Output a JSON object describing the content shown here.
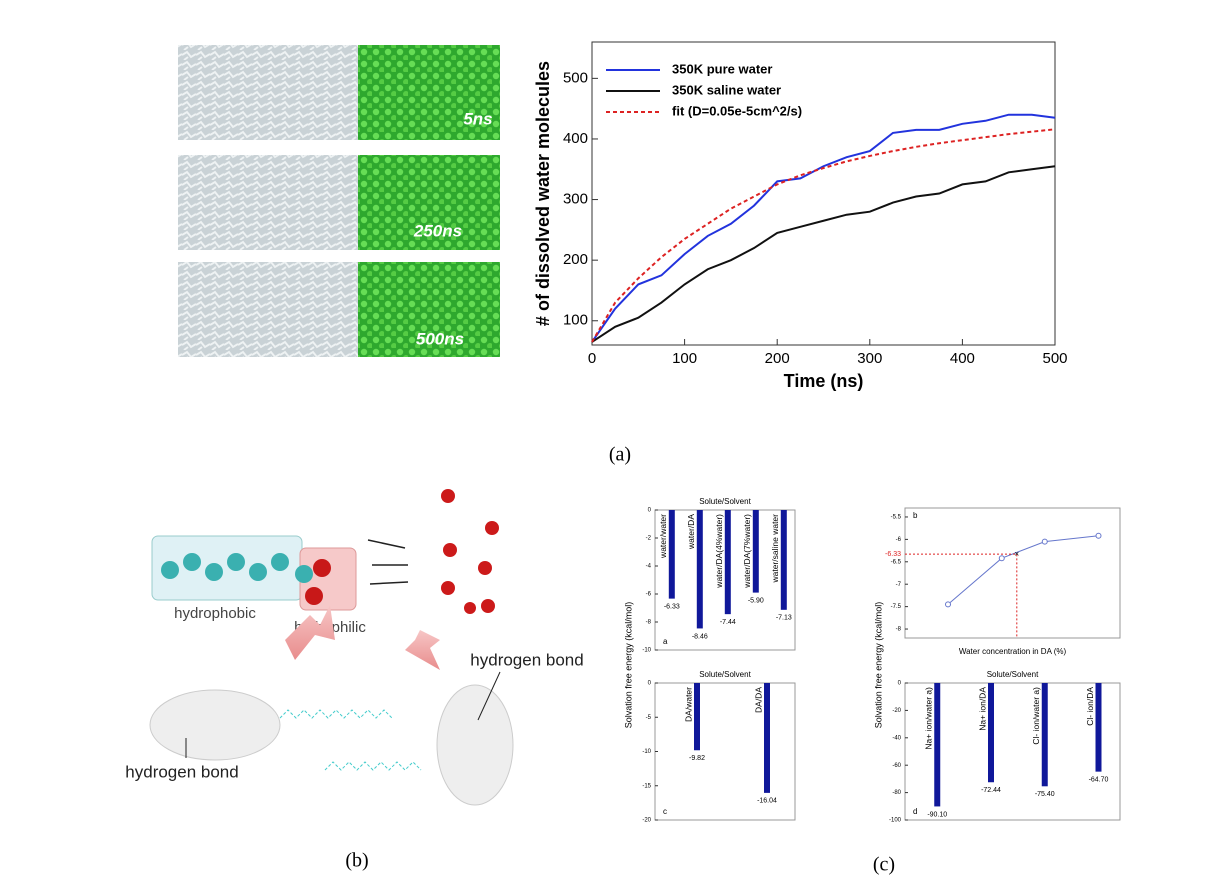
{
  "chart_data": [
    {
      "type": "line",
      "x_label": "Time (ns)",
      "y_label": "# of dissolved water molecules",
      "x": [
        0,
        25,
        50,
        75,
        100,
        125,
        150,
        175,
        200,
        225,
        250,
        275,
        300,
        325,
        350,
        375,
        400,
        425,
        450,
        475,
        500
      ],
      "series": [
        {
          "name": "350K pure water",
          "color": "#2233dd",
          "style": "solid",
          "values": [
            65,
            120,
            160,
            175,
            210,
            240,
            260,
            290,
            330,
            335,
            355,
            370,
            380,
            410,
            415,
            415,
            425,
            430,
            440,
            440,
            435
          ]
        },
        {
          "name": "350K saline water",
          "color": "#111111",
          "style": "solid",
          "values": [
            65,
            90,
            105,
            130,
            160,
            185,
            200,
            220,
            245,
            255,
            265,
            275,
            280,
            295,
            305,
            310,
            325,
            330,
            345,
            350,
            355
          ]
        },
        {
          "name": "fit (D=0.05e-5cm^2/s)",
          "color": "#dd2222",
          "style": "dashed",
          "values": [
            65,
            130,
            170,
            205,
            235,
            260,
            285,
            305,
            325,
            340,
            352,
            363,
            372,
            380,
            387,
            393,
            398,
            403,
            408,
            412,
            416
          ]
        }
      ],
      "xlim": [
        0,
        500
      ],
      "xticks": [
        0,
        100,
        200,
        300,
        400,
        500
      ],
      "ylim": [
        60,
        560
      ],
      "yticks": [
        100,
        200,
        300,
        400,
        500
      ],
      "legend": "top-left"
    },
    {
      "type": "bar",
      "title": "Solute/Solvent",
      "panel_label": "a",
      "y_label": "Solvation free energy (kcal/mol)",
      "color": "#10189a",
      "categories": [
        "water/water",
        "water/DA",
        "water/DA(4%water)",
        "water/DA(7%water)",
        "water/saline water"
      ],
      "values": [
        -6.33,
        -8.46,
        -7.44,
        -5.9,
        -7.13
      ],
      "value_labels": [
        "-6.33",
        "-8.46",
        "-7.44",
        "-5.90",
        "-7.13"
      ],
      "ylim": [
        -10,
        0
      ],
      "yticks": [
        0,
        -2,
        -4,
        -6,
        -8,
        -10
      ]
    },
    {
      "type": "line",
      "panel_label": "b",
      "x_label": "Water concentration in DA (%)",
      "color": "#666688",
      "x": [
        2,
        4.5,
        6.5,
        9
      ],
      "series": [
        {
          "color": "#6677cc",
          "values": [
            -7.45,
            -6.42,
            -6.05,
            -5.92
          ]
        }
      ],
      "highlight": {
        "x": 5.2,
        "y": -6.33,
        "color": "#dd2222"
      },
      "xlim": [
        0,
        10
      ],
      "ylim": [
        -8.2,
        -5.3
      ],
      "yticks": [
        -5.5,
        -6,
        -6.5,
        -7,
        -7.5,
        -8
      ]
    },
    {
      "type": "bar",
      "title": "Solute/Solvent",
      "panel_label": "c",
      "color": "#10189a",
      "categories": [
        "DA/water",
        "DA/DA"
      ],
      "values": [
        -9.82,
        -16.04
      ],
      "value_labels": [
        "-9.82",
        "-16.04"
      ],
      "ylim": [
        -20,
        0
      ],
      "yticks": [
        0,
        -5,
        -10,
        -15,
        -20
      ]
    },
    {
      "type": "bar",
      "title": "Solute/Solvent",
      "panel_label": "d",
      "y_label": "Solvation free energy (kcal/mol)",
      "color": "#10189a",
      "categories": [
        "Na+ ion/water a)",
        "Na+ ion/DA",
        "Cl- ion/water a)",
        "Cl- ion/DA"
      ],
      "values": [
        -90.1,
        -72.44,
        -75.4,
        -64.7
      ],
      "value_labels": [
        "-90.10",
        "-72.44",
        "-75.40",
        "-64.70"
      ],
      "ylim": [
        -100,
        0
      ],
      "yticks": [
        0,
        -20,
        -40,
        -60,
        -80,
        -100
      ]
    }
  ],
  "snapshots": {
    "labels": [
      "5ns",
      "250ns",
      "500ns"
    ]
  },
  "diagram": {
    "hydrophobic": "hydrophobic",
    "hydrophilic": "hydrophilic",
    "hbond_right": "hydrogen bond",
    "hbond_left": "hydrogen bond"
  },
  "captions": [
    "(a)",
    "(b)",
    "(c)"
  ]
}
